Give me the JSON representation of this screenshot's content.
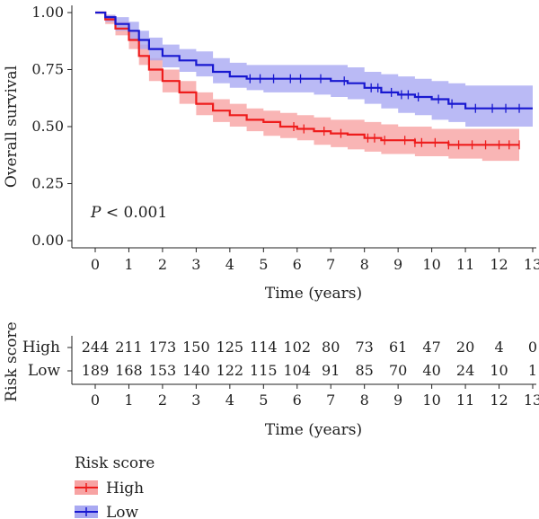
{
  "chart_data": [
    {
      "type": "line",
      "subtype": "kaplan-meier survival curve with 95% confidence bands and censor marks",
      "ylabel": "Overall survival",
      "xlabel": "Time (years)",
      "xlim": [
        0,
        13
      ],
      "ylim": [
        0,
        1
      ],
      "x_ticks": [
        "0",
        "1",
        "2",
        "3",
        "4",
        "5",
        "6",
        "7",
        "8",
        "9",
        "10",
        "11",
        "12",
        "13"
      ],
      "y_ticks": [
        "0.00",
        "0.25",
        "0.50",
        "0.75",
        "1.00"
      ],
      "annotation": {
        "p_label": "P",
        "p_rest": " < 0.001"
      },
      "grid": false,
      "series": [
        {
          "name": "High",
          "color": "#ee1c1c",
          "band_color": "#f7a3a3",
          "x": [
            0,
            0.3,
            0.6,
            1.0,
            1.3,
            1.6,
            2.0,
            2.5,
            3.0,
            3.5,
            4.0,
            4.5,
            5.0,
            5.5,
            6.0,
            6.5,
            7.0,
            7.5,
            8.0,
            8.5,
            9.0,
            9.5,
            10.0,
            10.5,
            11.0,
            11.5,
            12.0,
            12.6
          ],
          "y": [
            1.0,
            0.97,
            0.93,
            0.88,
            0.81,
            0.75,
            0.7,
            0.65,
            0.6,
            0.57,
            0.55,
            0.53,
            0.52,
            0.5,
            0.49,
            0.48,
            0.47,
            0.465,
            0.45,
            0.44,
            0.44,
            0.43,
            0.43,
            0.42,
            0.42,
            0.42,
            0.42,
            0.42
          ],
          "lower": [
            1.0,
            0.95,
            0.9,
            0.84,
            0.77,
            0.7,
            0.65,
            0.6,
            0.55,
            0.52,
            0.5,
            0.48,
            0.46,
            0.45,
            0.44,
            0.42,
            0.41,
            0.4,
            0.39,
            0.38,
            0.38,
            0.37,
            0.37,
            0.36,
            0.36,
            0.35,
            0.35,
            0.35
          ],
          "upper": [
            1.0,
            0.99,
            0.96,
            0.92,
            0.86,
            0.8,
            0.75,
            0.7,
            0.65,
            0.62,
            0.6,
            0.58,
            0.57,
            0.56,
            0.55,
            0.54,
            0.53,
            0.53,
            0.52,
            0.51,
            0.5,
            0.5,
            0.49,
            0.49,
            0.49,
            0.49,
            0.49,
            0.49
          ],
          "censor_x": [
            5.9,
            6.2,
            6.8,
            7.3,
            8.1,
            8.3,
            8.6,
            9.2,
            9.5,
            9.7,
            10.1,
            10.5,
            10.8,
            11.2,
            11.6,
            12.0,
            12.3,
            12.6
          ]
        },
        {
          "name": "Low",
          "color": "#1818d0",
          "band_color": "#a9a9f2",
          "x": [
            0,
            0.3,
            0.6,
            1.0,
            1.3,
            1.6,
            2.0,
            2.5,
            3.0,
            3.5,
            4.0,
            4.5,
            5.0,
            5.5,
            6.0,
            6.5,
            7.0,
            7.5,
            8.0,
            8.5,
            9.0,
            9.5,
            10.0,
            10.5,
            11.0,
            11.5,
            12.0,
            13.0
          ],
          "y": [
            1.0,
            0.98,
            0.95,
            0.92,
            0.88,
            0.84,
            0.81,
            0.79,
            0.77,
            0.74,
            0.72,
            0.71,
            0.71,
            0.71,
            0.71,
            0.71,
            0.7,
            0.69,
            0.67,
            0.65,
            0.64,
            0.63,
            0.62,
            0.6,
            0.58,
            0.58,
            0.58,
            0.58
          ],
          "lower": [
            1.0,
            0.96,
            0.92,
            0.88,
            0.84,
            0.79,
            0.76,
            0.74,
            0.72,
            0.69,
            0.67,
            0.66,
            0.65,
            0.65,
            0.65,
            0.64,
            0.63,
            0.62,
            0.6,
            0.58,
            0.56,
            0.55,
            0.53,
            0.52,
            0.5,
            0.5,
            0.5,
            0.5
          ],
          "upper": [
            1.0,
            0.99,
            0.98,
            0.96,
            0.92,
            0.89,
            0.86,
            0.84,
            0.83,
            0.8,
            0.78,
            0.77,
            0.77,
            0.77,
            0.77,
            0.77,
            0.77,
            0.76,
            0.74,
            0.73,
            0.72,
            0.71,
            0.7,
            0.69,
            0.68,
            0.68,
            0.68,
            0.68
          ],
          "censor_x": [
            4.6,
            4.9,
            5.3,
            5.8,
            6.1,
            6.7,
            7.4,
            8.2,
            8.4,
            8.8,
            9.1,
            9.3,
            9.6,
            10.2,
            10.6,
            11.3,
            11.8,
            12.2,
            12.6
          ]
        }
      ]
    },
    {
      "type": "table",
      "title": "Risk score",
      "xlabel": "Time (years)",
      "columns": [
        "0",
        "1",
        "2",
        "3",
        "4",
        "5",
        "6",
        "7",
        "8",
        "9",
        "10",
        "11",
        "12",
        "13"
      ],
      "rows": [
        {
          "label": "High",
          "color": "#ee1c1c",
          "values": [
            "244",
            "211",
            "173",
            "150",
            "125",
            "114",
            "102",
            "80",
            "73",
            "61",
            "47",
            "20",
            "4",
            "0"
          ]
        },
        {
          "label": "Low",
          "color": "#1818d0",
          "values": [
            "189",
            "168",
            "153",
            "140",
            "122",
            "115",
            "104",
            "91",
            "85",
            "70",
            "40",
            "24",
            "10",
            "1"
          ]
        }
      ]
    }
  ],
  "legend": {
    "title": "Risk score",
    "items": [
      {
        "label": "High",
        "color": "#ee1c1c"
      },
      {
        "label": "Low",
        "color": "#1818d0"
      }
    ]
  }
}
